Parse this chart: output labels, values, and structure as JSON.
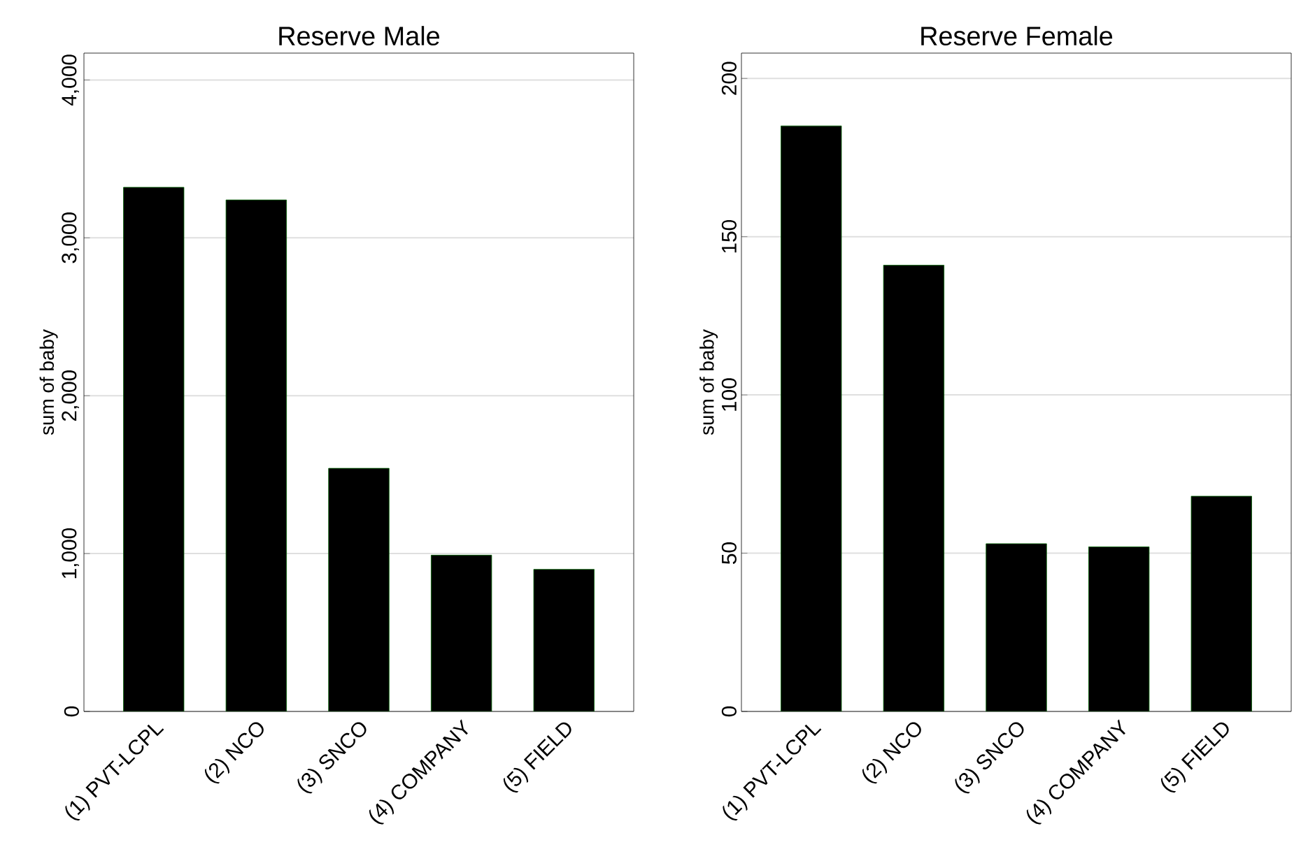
{
  "chart_data": [
    {
      "type": "bar",
      "title": "Reserve Male",
      "ylabel": "sum of baby",
      "categories": [
        "(1) PVT-LCPL",
        "(2) NCO",
        "(3) SNCO",
        "(4) COMPANY",
        "(5) FIELD"
      ],
      "values": [
        3320,
        3240,
        1540,
        990,
        900
      ],
      "color": "#000000",
      "ylim": [
        0,
        4170
      ],
      "yticks": [
        {
          "value": 0,
          "label": "0"
        },
        {
          "value": 1000,
          "label": "1,000"
        },
        {
          "value": 2000,
          "label": "2,000"
        },
        {
          "value": 3000,
          "label": "3,000"
        },
        {
          "value": 4000,
          "label": "4,000"
        }
      ],
      "grid": "y"
    },
    {
      "type": "bar",
      "title": "Reserve Female",
      "ylabel": "sum of baby",
      "categories": [
        "(1) PVT-LCPL",
        "(2) NCO",
        "(3) SNCO",
        "(4) COMPANY",
        "(5) FIELD"
      ],
      "values": [
        185,
        141,
        53,
        52,
        68
      ],
      "color": "#000000",
      "ylim": [
        0,
        208
      ],
      "yticks": [
        0,
        50,
        100,
        150,
        200
      ],
      "grid": "y"
    }
  ]
}
